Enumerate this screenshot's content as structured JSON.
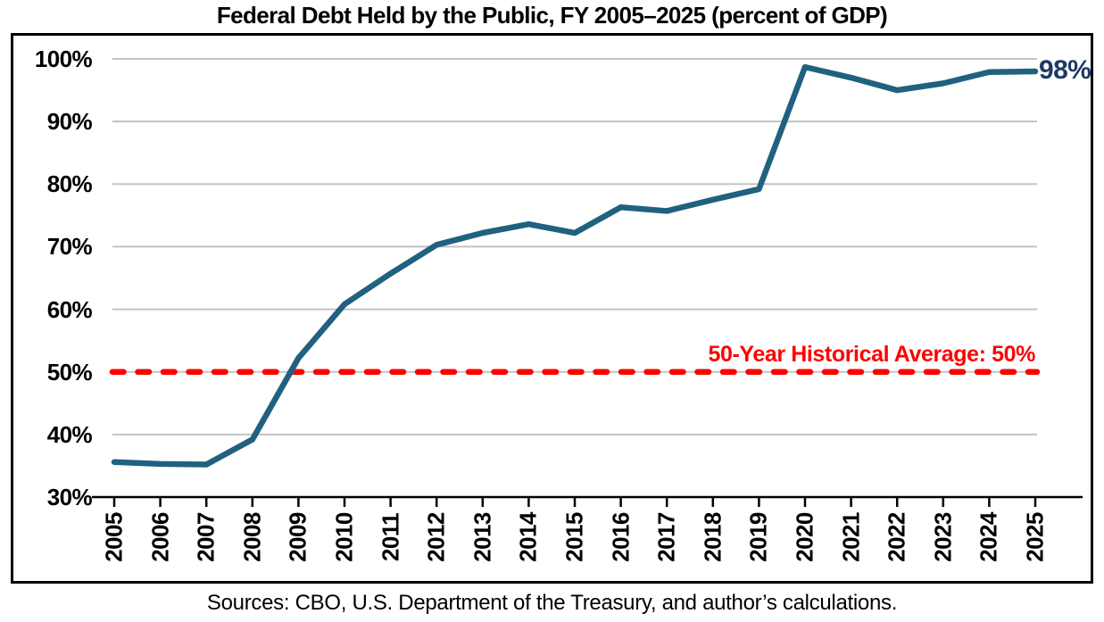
{
  "chart_data": {
    "type": "line",
    "title": "Federal Debt Held by the Public, FY 2005–2025 (percent of GDP)",
    "x": [
      "2005",
      "2006",
      "2007",
      "2008",
      "2009",
      "2010",
      "2011",
      "2012",
      "2013",
      "2014",
      "2015",
      "2016",
      "2017",
      "2018",
      "2019",
      "2020",
      "2021",
      "2022",
      "2023",
      "2024",
      "2025"
    ],
    "values": [
      35.6,
      35.3,
      35.2,
      39.2,
      52.2,
      60.8,
      65.7,
      70.3,
      72.2,
      73.6,
      72.2,
      76.3,
      75.7,
      77.5,
      79.2,
      98.7,
      97.0,
      95.0,
      96.1,
      97.9,
      98.0
    ],
    "ylim": [
      30,
      100
    ],
    "y_ticks": [
      {
        "value": 100,
        "label": "100%"
      },
      {
        "value": 90,
        "label": "90%"
      },
      {
        "value": 80,
        "label": "80%"
      },
      {
        "value": 70,
        "label": "70%"
      },
      {
        "value": 60,
        "label": "60%"
      },
      {
        "value": 50,
        "label": "50%"
      },
      {
        "value": 40,
        "label": "40%"
      },
      {
        "value": 30,
        "label": "30%"
      }
    ],
    "grid": "horizontal",
    "line_color": "#20617F",
    "grid_color": "#C3C3C3",
    "axis_color": "#000000",
    "reference_line": {
      "value": 50,
      "label": "50-Year Historical Average: 50%",
      "color": "#FF0000",
      "style": "dashed"
    },
    "end_label": {
      "text": "98%",
      "color": "#1F3864"
    },
    "source": "Sources: CBO, U.S. Department of the Treasury, and author’s calculations."
  }
}
